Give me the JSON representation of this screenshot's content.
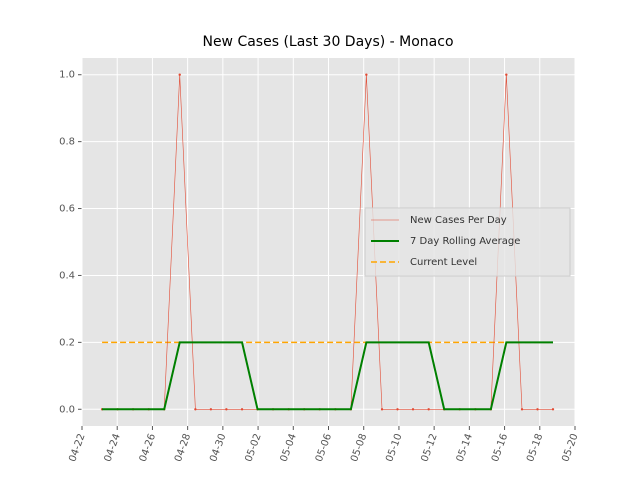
{
  "chart_data": {
    "type": "line",
    "title": "New Cases (Last 30 Days) - Monaco",
    "x": [
      1.14,
      2.02,
      2.9,
      3.79,
      4.67,
      5.55,
      6.44,
      7.32,
      8.2,
      9.09,
      9.97,
      10.85,
      11.74,
      12.62,
      13.5,
      14.39,
      15.27,
      16.15,
      17.04,
      17.92,
      18.8,
      19.69,
      20.57,
      21.45,
      22.34,
      23.22,
      24.1,
      24.99,
      25.87,
      26.75
    ],
    "series": [
      {
        "name": "New Cases Per Day",
        "color": "#e24a33",
        "values": [
          0,
          0,
          0,
          0,
          0,
          1,
          0,
          0,
          0,
          0,
          0,
          0,
          0,
          0,
          0,
          0,
          0,
          1,
          0,
          0,
          0,
          0,
          0,
          0,
          0,
          0,
          1,
          0,
          0,
          0
        ]
      },
      {
        "name": "7 Day Rolling Average",
        "color": "#008000",
        "values": [
          0,
          0,
          0,
          0,
          0,
          0.2,
          0.2,
          0.2,
          0.2,
          0.2,
          0,
          0,
          0,
          0,
          0,
          0,
          0,
          0.2,
          0.2,
          0.2,
          0.2,
          0.2,
          0,
          0,
          0,
          0,
          0.2,
          0.2,
          0.2,
          0.2
        ]
      }
    ],
    "reference_line": {
      "name": "Current Level",
      "value": 0.2,
      "color": "#ffa500"
    },
    "xlim": [
      0,
      28
    ],
    "xticks": [
      {
        "value": 0,
        "label": "04-22"
      },
      {
        "value": 2,
        "label": "04-24"
      },
      {
        "value": 4,
        "label": "04-26"
      },
      {
        "value": 6,
        "label": "04-28"
      },
      {
        "value": 8,
        "label": "04-30"
      },
      {
        "value": 10,
        "label": "05-02"
      },
      {
        "value": 12,
        "label": "05-04"
      },
      {
        "value": 14,
        "label": "05-06"
      },
      {
        "value": 16,
        "label": "05-08"
      },
      {
        "value": 18,
        "label": "05-10"
      },
      {
        "value": 20,
        "label": "05-12"
      },
      {
        "value": 22,
        "label": "05-14"
      },
      {
        "value": 24,
        "label": "05-16"
      },
      {
        "value": 26,
        "label": "05-18"
      },
      {
        "value": 28,
        "label": "05-20"
      }
    ],
    "ylim": [
      -0.05,
      1.05
    ],
    "yticks": [
      {
        "value": 0,
        "label": "0.0"
      },
      {
        "value": 0.2,
        "label": "0.2"
      },
      {
        "value": 0.4,
        "label": "0.4"
      },
      {
        "value": 0.6,
        "label": "0.6"
      },
      {
        "value": 0.8,
        "label": "0.8"
      },
      {
        "value": 1,
        "label": "1.0"
      }
    ],
    "grid": true,
    "legend": "center right"
  }
}
